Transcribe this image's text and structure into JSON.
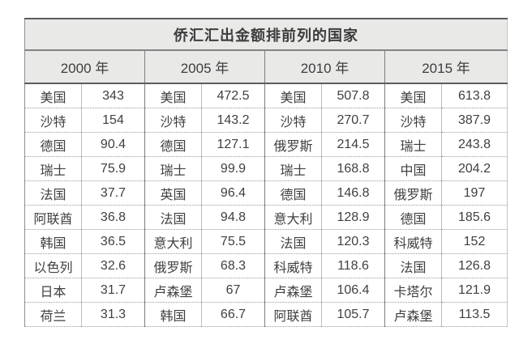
{
  "chart_data": {
    "type": "table",
    "title": "侨汇汇出金额排前列的国家",
    "column_headers": [
      "2000 年",
      "2005 年",
      "2010 年",
      "2015 年"
    ],
    "groups": [
      {
        "year_label": "2000 年",
        "rows": [
          {
            "country": "美国",
            "value": "343"
          },
          {
            "country": "沙特",
            "value": "154"
          },
          {
            "country": "德国",
            "value": "90.4"
          },
          {
            "country": "瑞士",
            "value": "75.9"
          },
          {
            "country": "法国",
            "value": "37.7"
          },
          {
            "country": "阿联酋",
            "value": "36.8"
          },
          {
            "country": "韩国",
            "value": "36.5"
          },
          {
            "country": "以色列",
            "value": "32.6"
          },
          {
            "country": "日本",
            "value": "31.7"
          },
          {
            "country": "荷兰",
            "value": "31.3"
          }
        ]
      },
      {
        "year_label": "2005 年",
        "rows": [
          {
            "country": "美国",
            "value": "472.5"
          },
          {
            "country": "沙特",
            "value": "143.2"
          },
          {
            "country": "德国",
            "value": "127.1"
          },
          {
            "country": "瑞士",
            "value": "99.9"
          },
          {
            "country": "英国",
            "value": "96.4"
          },
          {
            "country": "法国",
            "value": "94.8"
          },
          {
            "country": "意大利",
            "value": "75.5"
          },
          {
            "country": "俄罗斯",
            "value": "68.3"
          },
          {
            "country": "卢森堡",
            "value": "67"
          },
          {
            "country": "韩国",
            "value": "66.7"
          }
        ]
      },
      {
        "year_label": "2010 年",
        "rows": [
          {
            "country": "美国",
            "value": "507.8"
          },
          {
            "country": "沙特",
            "value": "270.7"
          },
          {
            "country": "俄罗斯",
            "value": "214.5"
          },
          {
            "country": "瑞士",
            "value": "168.8"
          },
          {
            "country": "德国",
            "value": "146.8"
          },
          {
            "country": "意大利",
            "value": "128.9"
          },
          {
            "country": "法国",
            "value": "120.3"
          },
          {
            "country": "科威特",
            "value": "118.6"
          },
          {
            "country": "卢森堡",
            "value": "106.4"
          },
          {
            "country": "阿联酋",
            "value": "105.7"
          }
        ]
      },
      {
        "year_label": "2015 年",
        "rows": [
          {
            "country": "美国",
            "value": "613.8"
          },
          {
            "country": "沙特",
            "value": "387.9"
          },
          {
            "country": "瑞士",
            "value": "243.8"
          },
          {
            "country": "中国",
            "value": "204.2"
          },
          {
            "country": "俄罗斯",
            "value": "197"
          },
          {
            "country": "德国",
            "value": "185.6"
          },
          {
            "country": "科威特",
            "value": "152"
          },
          {
            "country": "法国",
            "value": "126.8"
          },
          {
            "country": "卡塔尔",
            "value": "121.9"
          },
          {
            "country": "卢森堡",
            "value": "113.5"
          }
        ]
      }
    ],
    "colors": {
      "header_bg": "#e9e9e8",
      "border_dark": "#5c5c5c",
      "border_mid": "#7f7f7f",
      "border_light": "#bdbdbd",
      "text": "#404040"
    },
    "layout_hints": {
      "grid": "solid column dividers, dotted row separators",
      "rows_per_group": 10
    }
  }
}
